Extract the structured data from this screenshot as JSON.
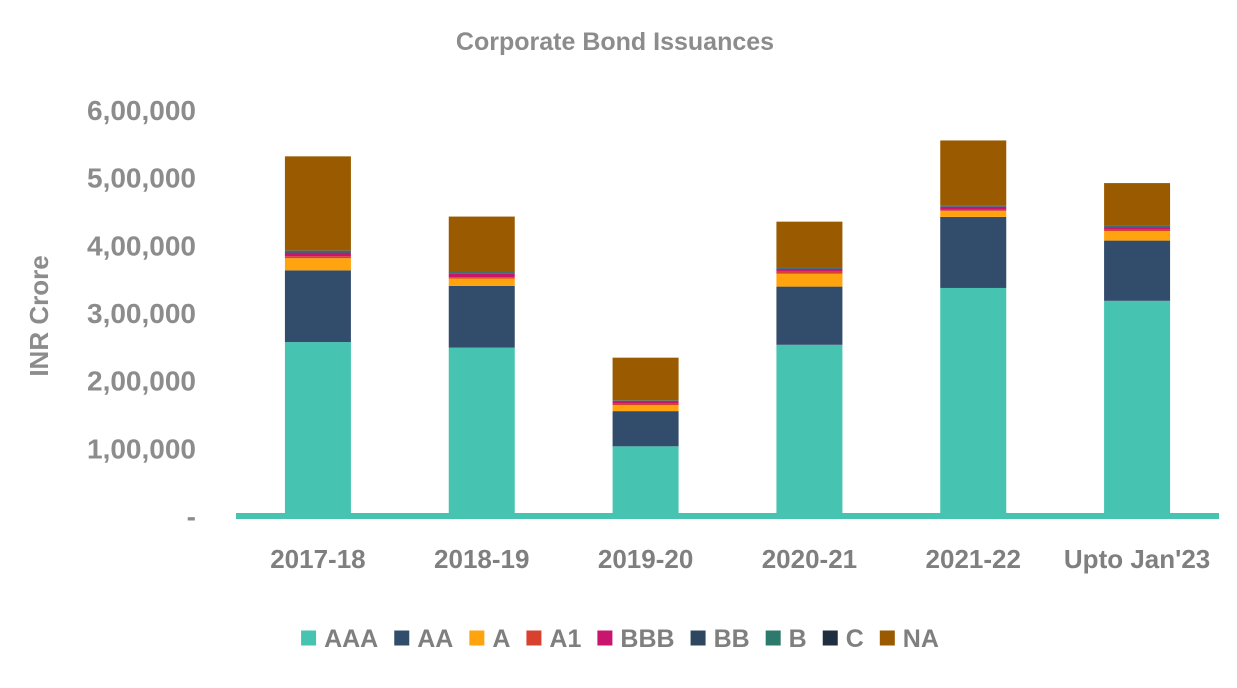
{
  "chart_data": {
    "type": "bar",
    "stacked": true,
    "title": "Corporate Bond Issuances",
    "xlabel": "",
    "ylabel": "INR Crore",
    "ylim": [
      0,
      600000
    ],
    "yticks": [
      0,
      100000,
      200000,
      300000,
      400000,
      500000,
      600000
    ],
    "ytick_labels": [
      "-",
      "1,00,000",
      "2,00,000",
      "3,00,000",
      "4,00,000",
      "5,00,000",
      "6,00,000"
    ],
    "categories": [
      "2017-18",
      "2018-19",
      "2019-20",
      "2020-21",
      "2021-22",
      "Upto Jan'23"
    ],
    "grid": false,
    "legend_position": "bottom",
    "series": [
      {
        "name": "AAA",
        "color": "#47c3b1",
        "values": [
          257000,
          249000,
          103000,
          253000,
          337000,
          318000
        ]
      },
      {
        "name": "AA",
        "color": "#324c6b",
        "values": [
          106000,
          91000,
          52000,
          86000,
          105000,
          89000
        ]
      },
      {
        "name": "A",
        "color": "#ffa30f",
        "values": [
          18000,
          11000,
          9000,
          19000,
          9000,
          14000
        ]
      },
      {
        "name": "A1",
        "color": "#d9412f",
        "values": [
          3000,
          2000,
          2000,
          3000,
          2000,
          2000
        ]
      },
      {
        "name": "BBB",
        "color": "#c8166e",
        "values": [
          5000,
          5000,
          3000,
          4000,
          4000,
          4000
        ]
      },
      {
        "name": "BB",
        "color": "#2e4760",
        "values": [
          2000,
          1000,
          1000,
          1000,
          1000,
          1000
        ]
      },
      {
        "name": "B",
        "color": "#2d7a6d",
        "values": [
          1000,
          1000,
          500,
          500,
          500,
          500
        ]
      },
      {
        "name": "C",
        "color": "#1f2f40",
        "values": [
          500,
          500,
          500,
          500,
          500,
          500
        ]
      },
      {
        "name": "NA",
        "color": "#9a5b00",
        "values": [
          139000,
          82000,
          63000,
          68000,
          96000,
          63000
        ]
      }
    ]
  }
}
